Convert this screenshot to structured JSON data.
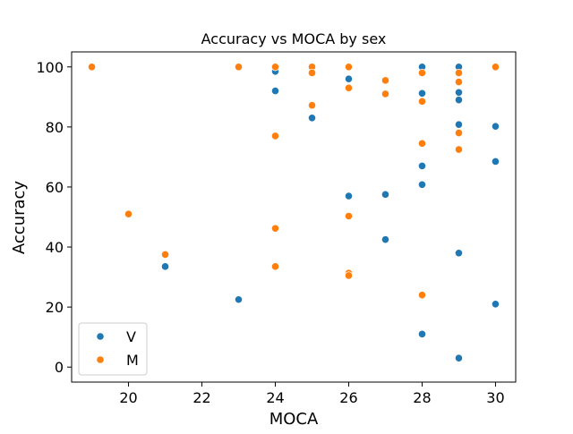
{
  "chart_data": {
    "type": "scatter",
    "title": "Accuracy vs MOCA by sex",
    "xlabel": "MOCA",
    "ylabel": "Accuracy",
    "xlim": [
      18.45,
      30.55
    ],
    "ylim": [
      -5,
      105
    ],
    "xticks": [
      20,
      22,
      24,
      26,
      28,
      30
    ],
    "yticks": [
      0,
      20,
      40,
      60,
      80,
      100
    ],
    "grid": false,
    "legend_position": "lower-left",
    "series": [
      {
        "name": "V",
        "color": "#1f77b4",
        "points": [
          [
            21,
            33.5
          ],
          [
            23,
            22.5
          ],
          [
            24,
            98.5
          ],
          [
            24,
            92
          ],
          [
            25,
            83
          ],
          [
            26,
            96
          ],
          [
            26,
            57
          ],
          [
            27,
            57.5
          ],
          [
            27,
            42.5
          ],
          [
            28,
            100
          ],
          [
            28,
            91.2
          ],
          [
            28,
            67
          ],
          [
            28,
            60.8
          ],
          [
            28,
            11
          ],
          [
            29,
            100
          ],
          [
            29,
            91.5
          ],
          [
            29,
            89
          ],
          [
            29,
            80.8
          ],
          [
            29,
            38
          ],
          [
            29,
            3
          ],
          [
            30,
            80.2
          ],
          [
            30,
            68.5
          ],
          [
            30,
            21
          ]
        ]
      },
      {
        "name": "M",
        "color": "#ff7f0e",
        "points": [
          [
            19,
            100
          ],
          [
            20,
            51
          ],
          [
            21,
            37.5
          ],
          [
            23,
            100
          ],
          [
            24,
            100
          ],
          [
            24,
            77
          ],
          [
            24,
            46.2
          ],
          [
            24,
            33.5
          ],
          [
            25,
            100
          ],
          [
            25,
            98
          ],
          [
            25,
            87.2
          ],
          [
            26,
            100
          ],
          [
            26,
            93
          ],
          [
            26,
            50.3
          ],
          [
            26,
            31.3
          ],
          [
            26,
            30.5
          ],
          [
            27,
            95.5
          ],
          [
            27,
            91
          ],
          [
            28,
            98
          ],
          [
            28,
            88.5
          ],
          [
            28,
            74.5
          ],
          [
            28,
            24
          ],
          [
            29,
            98
          ],
          [
            29,
            95
          ],
          [
            29,
            78
          ],
          [
            29,
            72.5
          ],
          [
            30,
            100
          ]
        ]
      }
    ]
  }
}
